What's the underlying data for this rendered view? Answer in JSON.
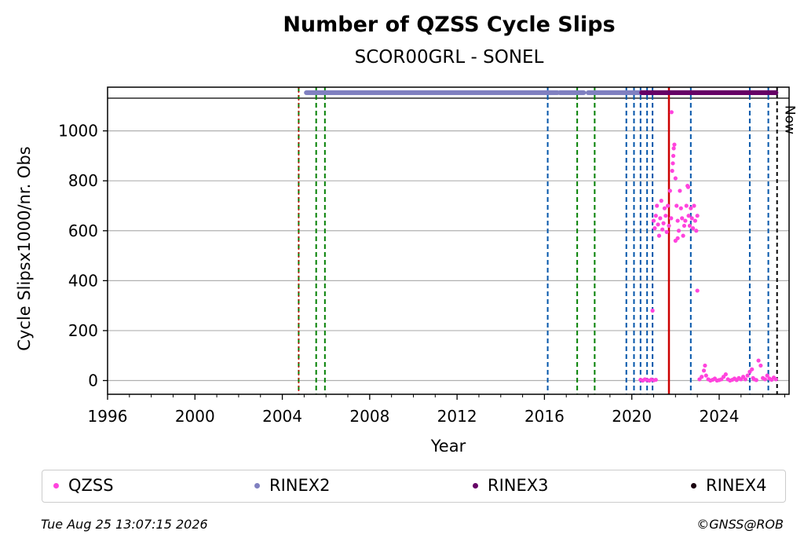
{
  "header": {
    "title": "Number of QZSS Cycle Slips",
    "subtitle": "SCOR00GRL - SONEL"
  },
  "footer": {
    "timestamp": "Tue Aug 25 13:07:15 2026",
    "credit": "©GNSS@ROB"
  },
  "chart_data": {
    "type": "scatter",
    "title": "Number of QZSS Cycle Slips",
    "subtitle": "SCOR00GRL - SONEL",
    "xlabel": "Year",
    "ylabel": "Cycle Slipsx1000/nr. Obs",
    "xlim": [
      1996.0,
      2027.2
    ],
    "ylim": [
      -55,
      1175
    ],
    "xticks": [
      1996,
      2000,
      2004,
      2008,
      2012,
      2016,
      2020,
      2024
    ],
    "yticks": [
      0,
      200,
      400,
      600,
      800,
      1000
    ],
    "grid": "horizontal",
    "now_label": "Now",
    "now_year": 2026.65,
    "colors": {
      "qzss": "#ff44dd",
      "rinex2": "#8080c0",
      "rinex3": "#660066",
      "rinex4": "#1a0010",
      "green_event": "#008000",
      "blue_event": "#0055aa",
      "red_event": "#cc0000",
      "now_line": "#000000"
    },
    "events": {
      "green": [
        2004.75,
        2005.55,
        2005.95,
        2017.5,
        2018.3
      ],
      "blue": [
        2016.15,
        2019.75,
        2020.1,
        2020.4,
        2020.7,
        2020.95,
        2022.7,
        2025.4,
        2026.25
      ],
      "red": [
        2004.75,
        2021.7
      ]
    },
    "rinex_bars": {
      "rinex2": [
        [
          2005.1,
          2016.6
        ],
        [
          2016.7,
          2017.8
        ],
        [
          2018.0,
          2021.0
        ]
      ],
      "rinex3": [
        [
          2020.45,
          2026.6
        ]
      ]
    },
    "series": [
      {
        "name": "QZSS",
        "points": [
          [
            2020.4,
            3
          ],
          [
            2020.5,
            0
          ],
          [
            2020.6,
            5
          ],
          [
            2020.7,
            2
          ],
          [
            2020.8,
            0
          ],
          [
            2020.9,
            4
          ],
          [
            2021.0,
            1
          ],
          [
            2021.1,
            3
          ],
          [
            2020.95,
            280
          ],
          [
            2021.0,
            640
          ],
          [
            2021.05,
            610
          ],
          [
            2021.1,
            660
          ],
          [
            2021.15,
            700
          ],
          [
            2021.2,
            625
          ],
          [
            2021.25,
            580
          ],
          [
            2021.3,
            650
          ],
          [
            2021.35,
            720
          ],
          [
            2021.4,
            605
          ],
          [
            2021.45,
            630
          ],
          [
            2021.5,
            690
          ],
          [
            2021.55,
            660
          ],
          [
            2021.6,
            595
          ],
          [
            2021.65,
            700
          ],
          [
            2021.7,
            620
          ],
          [
            2021.75,
            760
          ],
          [
            2021.8,
            650
          ],
          [
            2021.85,
            840
          ],
          [
            2021.9,
            900
          ],
          [
            2021.95,
            945
          ],
          [
            2022.0,
            810
          ],
          [
            2022.05,
            700
          ],
          [
            2022.1,
            640
          ],
          [
            2022.15,
            600
          ],
          [
            2022.2,
            760
          ],
          [
            2022.25,
            690
          ],
          [
            2022.3,
            650
          ],
          [
            2022.35,
            580
          ],
          [
            2022.4,
            620
          ],
          [
            2022.45,
            640
          ],
          [
            2022.5,
            700
          ],
          [
            2022.55,
            780
          ],
          [
            2022.6,
            660
          ],
          [
            2022.65,
            620
          ],
          [
            2022.7,
            690
          ],
          [
            2022.75,
            650
          ],
          [
            2022.8,
            610
          ],
          [
            2022.85,
            700
          ],
          [
            2022.9,
            640
          ],
          [
            2022.95,
            600
          ],
          [
            2023.0,
            660
          ],
          [
            2021.82,
            1075
          ],
          [
            2021.92,
            930
          ],
          [
            2021.88,
            870
          ],
          [
            2022.58,
            775
          ],
          [
            2022.0,
            560
          ],
          [
            2022.1,
            570
          ],
          [
            2023.0,
            360
          ],
          [
            2023.1,
            5
          ],
          [
            2023.2,
            15
          ],
          [
            2023.3,
            40
          ],
          [
            2023.35,
            60
          ],
          [
            2023.4,
            20
          ],
          [
            2023.5,
            5
          ],
          [
            2023.6,
            0
          ],
          [
            2023.7,
            3
          ],
          [
            2023.8,
            8
          ],
          [
            2023.9,
            0
          ],
          [
            2024.0,
            2
          ],
          [
            2024.1,
            5
          ],
          [
            2024.2,
            15
          ],
          [
            2024.3,
            25
          ],
          [
            2024.4,
            5
          ],
          [
            2024.5,
            0
          ],
          [
            2024.6,
            3
          ],
          [
            2024.7,
            8
          ],
          [
            2024.8,
            2
          ],
          [
            2024.9,
            10
          ],
          [
            2025.0,
            5
          ],
          [
            2025.1,
            15
          ],
          [
            2025.2,
            5
          ],
          [
            2025.3,
            20
          ],
          [
            2025.4,
            35
          ],
          [
            2025.5,
            45
          ],
          [
            2025.55,
            10
          ],
          [
            2025.6,
            5
          ],
          [
            2025.7,
            2
          ],
          [
            2025.8,
            80
          ],
          [
            2025.9,
            60
          ],
          [
            2026.0,
            10
          ],
          [
            2026.1,
            5
          ],
          [
            2026.2,
            20
          ],
          [
            2026.3,
            8
          ],
          [
            2026.4,
            3
          ],
          [
            2026.5,
            12
          ],
          [
            2026.6,
            5
          ]
        ]
      }
    ],
    "legend": [
      {
        "name": "QZSS",
        "color": "#ff44dd"
      },
      {
        "name": "RINEX2",
        "color": "#8080c0"
      },
      {
        "name": "RINEX3",
        "color": "#660066"
      },
      {
        "name": "RINEX4",
        "color": "#1a0010"
      }
    ]
  }
}
